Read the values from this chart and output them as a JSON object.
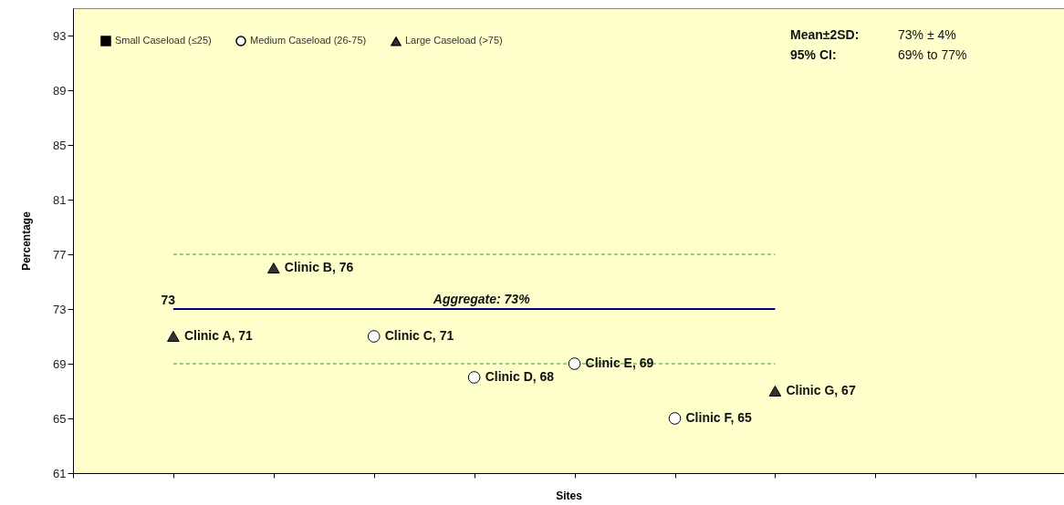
{
  "chart_data": {
    "type": "scatter",
    "xlabel": "Sites",
    "ylabel": "Percentage",
    "categories": [
      null,
      null,
      null,
      null,
      null,
      null,
      null,
      null,
      null,
      null
    ],
    "series": [
      {
        "name": "Small Caseload (≤25)",
        "marker": "square",
        "color": "#000000",
        "values": [
          null,
          null,
          null,
          null,
          null,
          null,
          null,
          null,
          null,
          null
        ]
      },
      {
        "name": "Medium Caseload (26-75)",
        "marker": "circle",
        "color": "#ffffff",
        "values": [
          null,
          null,
          null,
          71,
          68,
          69,
          65,
          null,
          null,
          null
        ],
        "value_labels": [
          null,
          null,
          null,
          "Clinic C, 71",
          "Clinic D, 68",
          "Clinic E, 69",
          "Clinic F, 65",
          null,
          null,
          null
        ]
      },
      {
        "name": "Large Caseload (>75)",
        "marker": "triangle",
        "color": "#333333",
        "values": [
          null,
          71,
          76,
          null,
          null,
          null,
          null,
          67,
          null,
          null
        ],
        "value_labels": [
          null,
          "Clinic A, 71",
          "Clinic B, 76",
          null,
          null,
          null,
          null,
          "Clinic G, 67",
          null,
          null
        ]
      },
      {
        "type": "line",
        "color": "#000080",
        "line_style": "solid",
        "values": [
          null,
          73,
          73,
          73,
          73,
          73,
          73,
          73,
          null,
          null
        ]
      },
      {
        "type": "line",
        "color": "#339933",
        "line_style": "dashed",
        "values": [
          null,
          77,
          77,
          77,
          77,
          77,
          77,
          77,
          null,
          null
        ]
      },
      {
        "type": "line",
        "color": "#339933",
        "line_style": "dashed",
        "values": [
          null,
          69,
          69,
          69,
          69,
          69,
          69,
          69,
          null,
          null
        ]
      }
    ],
    "ylim": [
      61,
      95
    ],
    "yticks": [
      61,
      65,
      69,
      73,
      77,
      81,
      85,
      89,
      93
    ],
    "grid": false,
    "legend": "top left",
    "tick_labels": "y",
    "annotations": [
      "Mean±2SD:",
      "73% ± 4%",
      "95% CI:",
      "69% to 77%",
      "73",
      {
        "text": "Aggregate: 73%",
        "y": 73
      }
    ]
  }
}
